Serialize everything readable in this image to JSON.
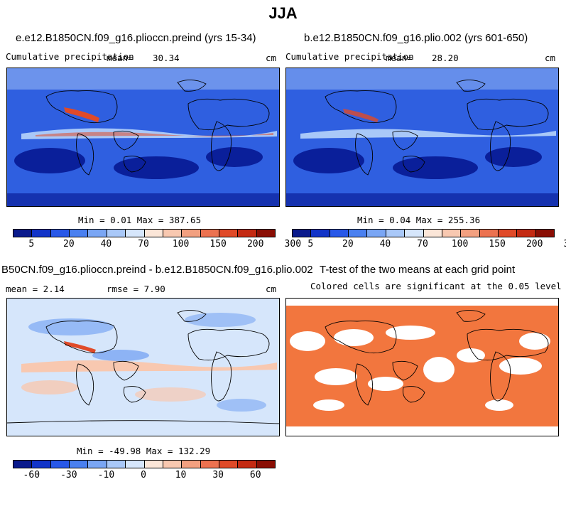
{
  "figure": {
    "title": "JJA"
  },
  "panels": [
    {
      "title": "e.e12.B1850CN.f09_g16.plioccn.preind (yrs 15-34)",
      "left_label": "Cumulative precipitation",
      "stat_label": "mean=",
      "stat_value": "30.34",
      "units": "cm",
      "min_max": "Min =   0.01 Max = 387.65"
    },
    {
      "title": "b.e12.B1850CN.f09_g16.plio.002 (yrs 601-650)",
      "left_label": "Cumulative precipitation",
      "stat_label": "mean=",
      "stat_value": "28.20",
      "units": "cm",
      "min_max": "Min =   0.04 Max = 255.36"
    },
    {
      "title": "B50CN.f09_g16.plioccn.preind - b.e12.B1850CN.f09_g16.plio.002",
      "mean_text": "mean =   2.14",
      "rmse_text": "rmse =   7.90",
      "units": "cm",
      "min_max": "Min = -49.98 Max = 132.29"
    },
    {
      "title": "T-test of the two means at each grid point",
      "subtitle": "Colored cells are significant at the 0.05 level"
    }
  ],
  "colorbars": {
    "precip": {
      "ticks": [
        "5",
        "20",
        "40",
        "70",
        "100",
        "150",
        "200",
        "300"
      ],
      "colors": [
        "#0a1a8c",
        "#1234c8",
        "#2858e8",
        "#4a80f0",
        "#7aa6f4",
        "#a9c8f8",
        "#d6e6fb",
        "#fbe6d8",
        "#f8c8b0",
        "#f2a080",
        "#ec7250",
        "#e04a28",
        "#c42a12",
        "#8a0e04"
      ]
    },
    "diff": {
      "ticks": [
        "-60",
        "-30",
        "-10",
        "0",
        "10",
        "30",
        "60"
      ],
      "colors": [
        "#0a1a8c",
        "#1234c8",
        "#2858e8",
        "#4a80f0",
        "#7aa6f4",
        "#a9c8f8",
        "#d6e6fb",
        "#fbe6d8",
        "#f8c8b0",
        "#f2a080",
        "#ec7250",
        "#e04a28",
        "#c42a12",
        "#8a0e04"
      ]
    }
  },
  "map_colors": {
    "precip_base": "#2f5fe0",
    "precip_dry": "#0a1f9a",
    "precip_wet": "#a9c8f8",
    "precip_peak": "#e04a28",
    "diff_base": "#d6e6fb",
    "diff_pos": "#f8c8b0",
    "diff_neg": "#7aa6f4",
    "sig": "#f2763e",
    "coast": "#000000"
  }
}
